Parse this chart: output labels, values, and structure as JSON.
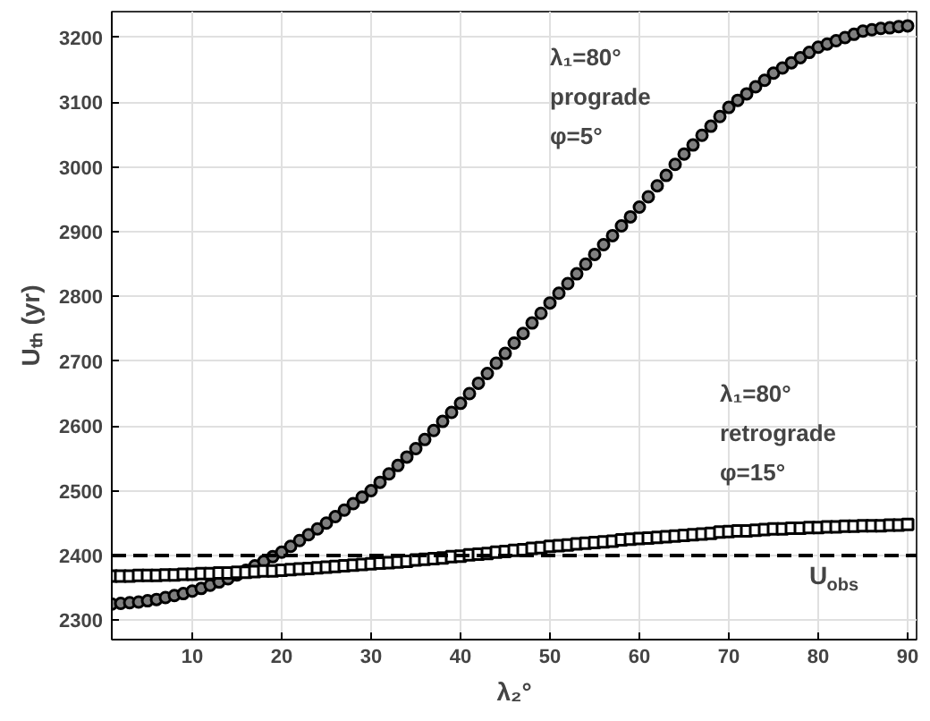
{
  "chart_data": {
    "type": "scatter",
    "xlabel": "λ₂°",
    "ylabel": "Uₜₕ (yr)",
    "x": [
      1,
      2,
      3,
      4,
      5,
      6,
      7,
      8,
      9,
      10,
      11,
      12,
      13,
      14,
      15,
      16,
      17,
      18,
      19,
      20,
      21,
      22,
      23,
      24,
      25,
      26,
      27,
      28,
      29,
      30,
      31,
      32,
      33,
      34,
      35,
      36,
      37,
      38,
      39,
      40,
      41,
      42,
      43,
      44,
      45,
      46,
      47,
      48,
      49,
      50,
      51,
      52,
      53,
      54,
      55,
      56,
      57,
      58,
      59,
      60,
      61,
      62,
      63,
      64,
      65,
      66,
      67,
      68,
      69,
      70,
      71,
      72,
      73,
      74,
      75,
      76,
      77,
      78,
      79,
      80,
      81,
      82,
      83,
      84,
      85,
      86,
      87,
      88,
      89,
      90
    ],
    "series": [
      {
        "color": "#000000",
        "marker": "circle",
        "values": [
          2325,
          2326,
          2327,
          2328,
          2330,
          2332,
          2335,
          2338,
          2341,
          2345,
          2349,
          2354,
          2359,
          2364,
          2370,
          2377,
          2384,
          2391,
          2398,
          2405,
          2414,
          2423,
          2432,
          2441,
          2450,
          2460,
          2470,
          2480,
          2490,
          2500,
          2513,
          2526,
          2539,
          2552,
          2565,
          2579,
          2593,
          2607,
          2621,
          2635,
          2650,
          2666,
          2681,
          2697,
          2712,
          2728,
          2743,
          2759,
          2774,
          2790,
          2805,
          2820,
          2835,
          2850,
          2865,
          2880,
          2894,
          2909,
          2923,
          2938,
          2954,
          2971,
          2987,
          3004,
          3020,
          3034,
          3049,
          3063,
          3078,
          3092,
          3103,
          3113,
          3124,
          3134,
          3145,
          3153,
          3161,
          3169,
          3177,
          3185,
          3190,
          3195,
          3200,
          3205,
          3210,
          3212,
          3214,
          3215,
          3217,
          3218
        ]
      },
      {
        "color": "#000000",
        "marker": "square",
        "values": [
          2368,
          2368,
          2368,
          2369,
          2369,
          2369,
          2370,
          2370,
          2371,
          2371,
          2372,
          2372,
          2373,
          2373,
          2374,
          2374,
          2375,
          2376,
          2376,
          2377,
          2378,
          2379,
          2380,
          2381,
          2382,
          2383,
          2384,
          2385,
          2386,
          2387,
          2388,
          2389,
          2390,
          2391,
          2393,
          2394,
          2395,
          2396,
          2398,
          2399,
          2401,
          2402,
          2403,
          2405,
          2406,
          2408,
          2409,
          2411,
          2412,
          2414,
          2415,
          2416,
          2418,
          2419,
          2420,
          2421,
          2422,
          2424,
          2425,
          2426,
          2427,
          2428,
          2429,
          2430,
          2431,
          2432,
          2433,
          2434,
          2436,
          2437,
          2438,
          2438,
          2439,
          2440,
          2441,
          2441,
          2442,
          2442,
          2443,
          2443,
          2444,
          2444,
          2445,
          2445,
          2446,
          2446,
          2446,
          2447,
          2447,
          2448
        ]
      }
    ],
    "xlim": [
      1,
      91
    ],
    "ylim": [
      2270,
      3240
    ],
    "xticks": [
      10,
      20,
      30,
      40,
      50,
      60,
      70,
      80,
      90
    ],
    "yticks": [
      2300,
      2400,
      2500,
      2600,
      2700,
      2800,
      2900,
      3000,
      3100,
      3200
    ],
    "grid": true,
    "ref_lines": [
      {
        "axis": "y",
        "value": 2400,
        "label": "U$_{obs}$",
        "line_style": "dashed",
        "color": "#000000"
      }
    ],
    "annotations": [
      "λ₁=80°\nprograde\nφ=5°",
      "λ₁=80°\nretrograde\nφ=15°"
    ]
  }
}
